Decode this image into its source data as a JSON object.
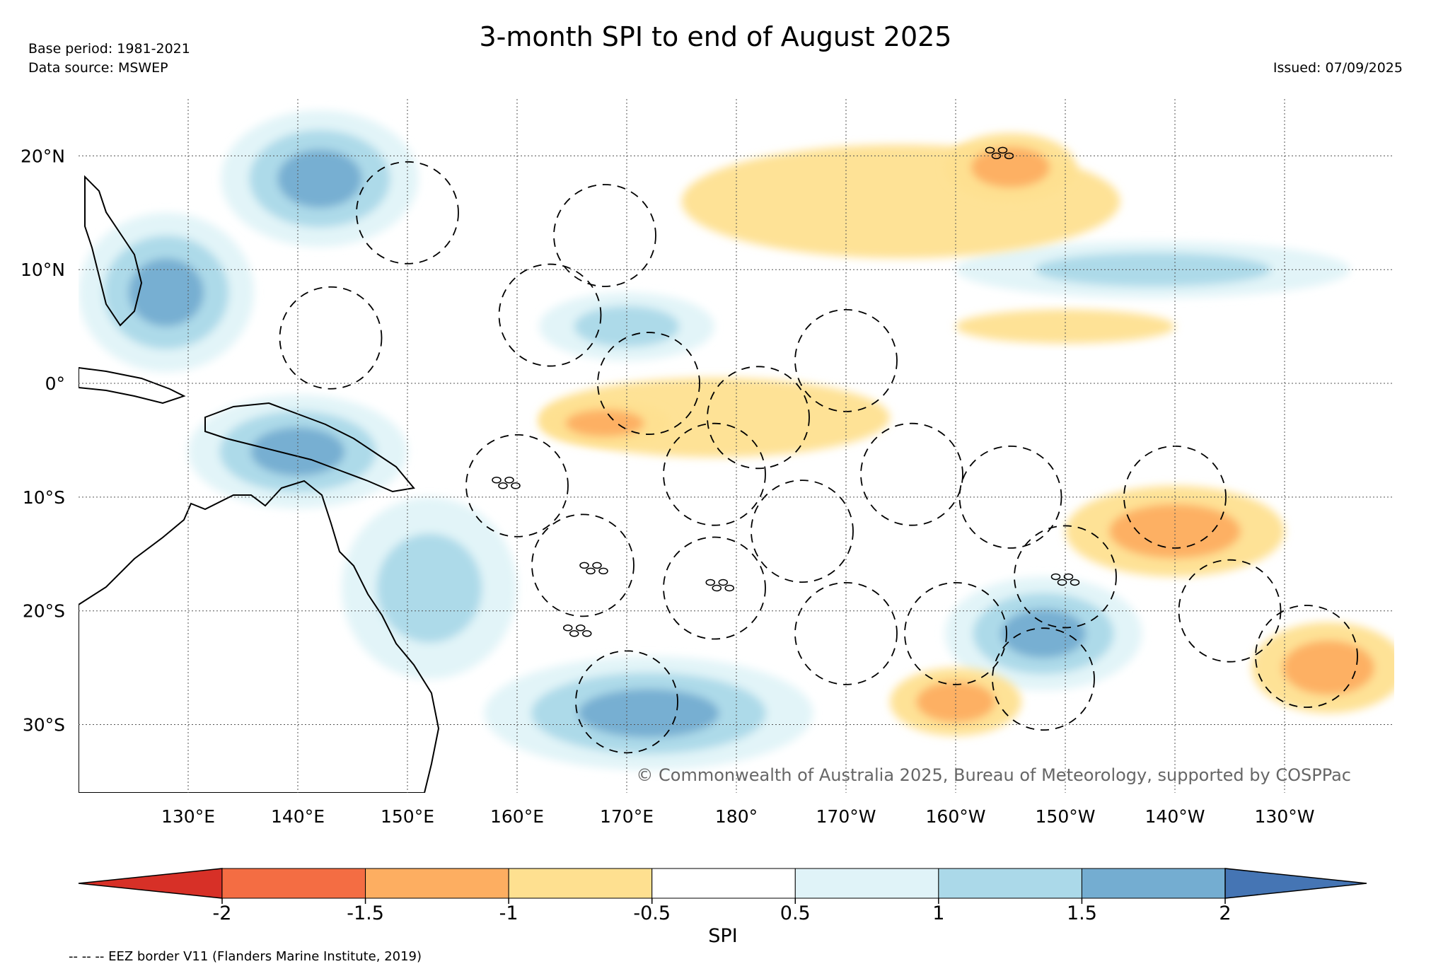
{
  "title": "3-month SPI to end of August 2025",
  "base_period": "Base period: 1981-2021",
  "data_source": "Data source: MSWEP",
  "issued": "Issued: 07/09/2025",
  "credit": "© Commonwealth of Australia 2025, Bureau of Meteorology, supported by COSPPac",
  "footnote": "-- -- -- EEZ border V11 (Flanders Marine Institute, 2019)",
  "map": {
    "lon_range": [
      120,
      240
    ],
    "lat_range": [
      -36,
      25
    ],
    "lon_ticks": [
      {
        "lon": 130,
        "label": "130°E"
      },
      {
        "lon": 140,
        "label": "140°E"
      },
      {
        "lon": 150,
        "label": "150°E"
      },
      {
        "lon": 160,
        "label": "160°E"
      },
      {
        "lon": 170,
        "label": "170°E"
      },
      {
        "lon": 180,
        "label": "180°"
      },
      {
        "lon": 190,
        "label": "170°W"
      },
      {
        "lon": 200,
        "label": "160°W"
      },
      {
        "lon": 210,
        "label": "150°W"
      },
      {
        "lon": 220,
        "label": "140°W"
      },
      {
        "lon": 230,
        "label": "130°W"
      }
    ],
    "lat_ticks": [
      {
        "lat": 20,
        "label": "20°N"
      },
      {
        "lat": 10,
        "label": "10°N"
      },
      {
        "lat": 0,
        "label": "0°"
      },
      {
        "lat": -10,
        "label": "10°S"
      },
      {
        "lat": -20,
        "label": "20°S"
      },
      {
        "lat": -30,
        "label": "30°S"
      }
    ],
    "regions": [
      {
        "name": "western-pacific-wet",
        "lon": 128,
        "lat": 8,
        "rx": 8,
        "ry": 7,
        "spi": 2.1
      },
      {
        "name": "north-pacific-wet",
        "lon": 142,
        "lat": 18,
        "rx": 9,
        "ry": 6,
        "spi": 1.8
      },
      {
        "name": "png-wet",
        "lon": 140,
        "lat": -6,
        "rx": 10,
        "ry": 5,
        "spi": 2.2
      },
      {
        "name": "coral-sea-wet",
        "lon": 152,
        "lat": -18,
        "rx": 8,
        "ry": 8,
        "spi": 1.6
      },
      {
        "name": "tasman-wet",
        "lon": 172,
        "lat": -29,
        "rx": 15,
        "ry": 5,
        "spi": 2.1
      },
      {
        "name": "central-south-wet",
        "lon": 208,
        "lat": -22,
        "rx": 9,
        "ry": 5,
        "spi": 2.1
      },
      {
        "name": "itcz-wet-east",
        "lon": 218,
        "lat": 10,
        "rx": 18,
        "ry": 2.5,
        "spi": 1.7
      },
      {
        "name": "itcz-wet-west",
        "lon": 170,
        "lat": 5,
        "rx": 8,
        "ry": 3,
        "spi": 1.6
      },
      {
        "name": "equatorial-dry",
        "lon": 178,
        "lat": -3,
        "rx": 16,
        "ry": 3.5,
        "spi": -1.2
      },
      {
        "name": "equatorial-dry-core",
        "lon": 168,
        "lat": -3.5,
        "rx": 6,
        "ry": 2,
        "spi": -1.6
      },
      {
        "name": "north-dry-band",
        "lon": 195,
        "lat": 16,
        "rx": 20,
        "ry": 5,
        "spi": -1.0
      },
      {
        "name": "hawaii-dry",
        "lon": 205,
        "lat": 19,
        "rx": 6,
        "ry": 3,
        "spi": -1.6
      },
      {
        "name": "marquesas-dry",
        "lon": 220,
        "lat": -13,
        "rx": 10,
        "ry": 4,
        "spi": -1.6
      },
      {
        "name": "southeast-dry",
        "lon": 234,
        "lat": -25,
        "rx": 7,
        "ry": 4,
        "spi": -1.7
      },
      {
        "name": "kermadec-dry",
        "lon": 200,
        "lat": -28,
        "rx": 6,
        "ry": 3,
        "spi": -1.3
      },
      {
        "name": "east-itcz-dry",
        "lon": 210,
        "lat": 5,
        "rx": 10,
        "ry": 1.5,
        "spi": -1.1
      }
    ],
    "island_groups": [
      {
        "name": "solomon-islands",
        "lon": 159,
        "lat": -8.5
      },
      {
        "name": "vanuatu",
        "lon": 167,
        "lat": -16
      },
      {
        "name": "fiji",
        "lon": 178.5,
        "lat": -17.5
      },
      {
        "name": "new-caledonia",
        "lon": 165.5,
        "lat": -21.5
      },
      {
        "name": "hawaii",
        "lon": 204,
        "lat": 20.5
      },
      {
        "name": "french-polynesia",
        "lon": 210,
        "lat": -17
      }
    ]
  },
  "colorbar": {
    "label": "SPI",
    "ticks": [
      "-2",
      "-1.5",
      "-1",
      "-0.5",
      "0.5",
      "1",
      "1.5",
      "2"
    ],
    "colors": [
      "#d73027",
      "#f46d43",
      "#fdae61",
      "#fee090",
      "#ffffff",
      "#e0f3f8",
      "#abd9e9",
      "#74add1",
      "#4575b4"
    ]
  }
}
